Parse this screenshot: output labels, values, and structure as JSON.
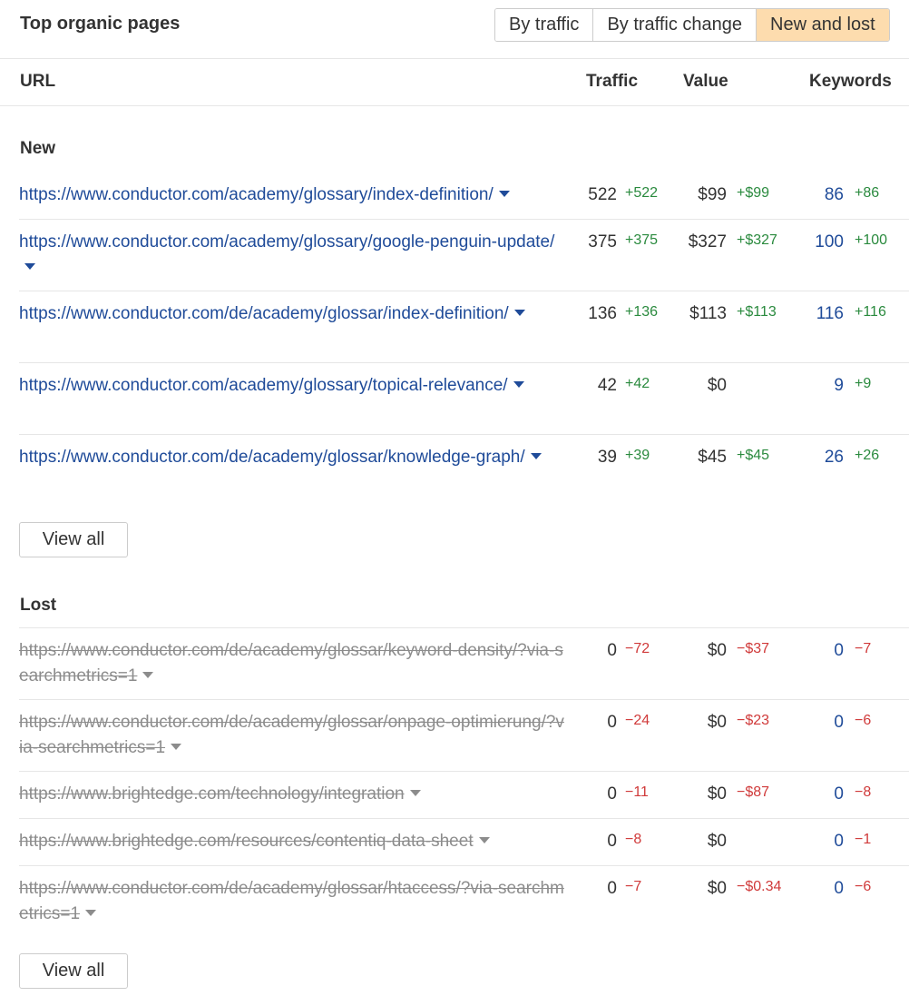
{
  "header": {
    "title": "Top organic pages",
    "tabs": [
      {
        "label": "By traffic",
        "active": false
      },
      {
        "label": "By traffic change",
        "active": false
      },
      {
        "label": "New and lost",
        "active": true
      }
    ]
  },
  "columns": {
    "url": "URL",
    "traffic": "Traffic",
    "value": "Value",
    "keywords": "Keywords"
  },
  "new_section": {
    "title": "New",
    "view_all": "View all",
    "rows": [
      {
        "url": "https://www.conductor.com/academy/glossary/index-definition/",
        "traffic": "522",
        "traffic_delta": "+522",
        "value": "$99",
        "value_delta": "+$99",
        "keywords": "86",
        "keywords_delta": "+86"
      },
      {
        "url": "https://www.conductor.com/academy/glossary/google-penguin-update/",
        "traffic": "375",
        "traffic_delta": "+375",
        "value": "$327",
        "value_delta": "+$327",
        "keywords": "100",
        "keywords_delta": "+100"
      },
      {
        "url": "https://www.conductor.com/de/academy/glossar/index-definition/",
        "traffic": "136",
        "traffic_delta": "+136",
        "value": "$113",
        "value_delta": "+$113",
        "keywords": "116",
        "keywords_delta": "+116"
      },
      {
        "url": "https://www.conductor.com/academy/glossary/topical-relevance/",
        "traffic": "42",
        "traffic_delta": "+42",
        "value": "$0",
        "value_delta": "",
        "keywords": "9",
        "keywords_delta": "+9"
      },
      {
        "url": "https://www.conductor.com/de/academy/glossar/knowledge-graph/",
        "traffic": "39",
        "traffic_delta": "+39",
        "value": "$45",
        "value_delta": "+$45",
        "keywords": "26",
        "keywords_delta": "+26"
      }
    ]
  },
  "lost_section": {
    "title": "Lost",
    "view_all": "View all",
    "rows": [
      {
        "url": "https://www.conductor.com/de/academy/glossar/keyword-density/?via-searchmetrics=1",
        "traffic": "0",
        "traffic_delta": "−72",
        "value": "$0",
        "value_delta": "−$37",
        "keywords": "0",
        "keywords_delta": "−7"
      },
      {
        "url": "https://www.conductor.com/de/academy/glossar/onpage-optimierung/?via-searchmetrics=1",
        "traffic": "0",
        "traffic_delta": "−24",
        "value": "$0",
        "value_delta": "−$23",
        "keywords": "0",
        "keywords_delta": "−6"
      },
      {
        "url": "https://www.brightedge.com/technology/integration",
        "traffic": "0",
        "traffic_delta": "−11",
        "value": "$0",
        "value_delta": "−$87",
        "keywords": "0",
        "keywords_delta": "−8"
      },
      {
        "url": "https://www.brightedge.com/resources/contentiq-data-sheet",
        "traffic": "0",
        "traffic_delta": "−8",
        "value": "$0",
        "value_delta": "",
        "keywords": "0",
        "keywords_delta": "−1"
      },
      {
        "url": "https://www.conductor.com/de/academy/glossar/htaccess/?via-searchmetrics=1",
        "traffic": "0",
        "traffic_delta": "−7",
        "value": "$0",
        "value_delta": "−$0.34",
        "keywords": "0",
        "keywords_delta": "−6"
      }
    ]
  }
}
